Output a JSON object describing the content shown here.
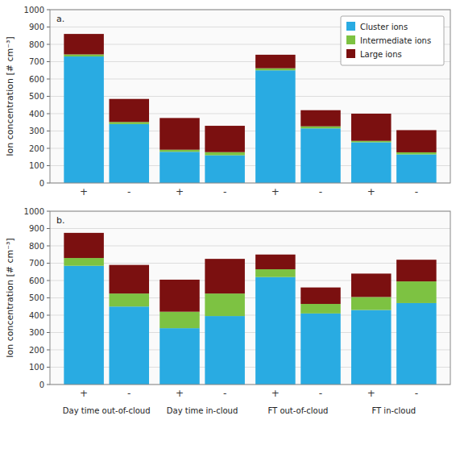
{
  "chart_data": [
    {
      "type": "bar",
      "stacked": true,
      "title": "a.",
      "ylabel": "Ion concentration [# cm⁻³]",
      "categories": [
        "+",
        "-",
        "+",
        "-",
        "+",
        "-",
        "+",
        "-"
      ],
      "series": [
        {
          "name": "Cluster ions",
          "color": "#29ABE2",
          "values": [
            730,
            340,
            180,
            160,
            650,
            315,
            235,
            165
          ]
        },
        {
          "name": "Intermediate ions",
          "color": "#7DC242",
          "values": [
            12,
            12,
            12,
            18,
            12,
            12,
            8,
            12
          ]
        },
        {
          "name": "Large ions",
          "color": "#7B1010",
          "values": [
            118,
            133,
            183,
            152,
            78,
            93,
            157,
            128
          ]
        }
      ],
      "ylim": [
        0,
        1000
      ],
      "yticks": [
        0,
        100,
        200,
        300,
        400,
        500,
        600,
        700,
        800,
        900,
        1000
      ],
      "grid": true,
      "legend": "upper right"
    },
    {
      "type": "bar",
      "stacked": true,
      "title": "b.",
      "ylabel": "Ion concentration [# cm⁻³]",
      "categories": [
        "+",
        "-",
        "+",
        "-",
        "+",
        "-",
        "+",
        "-"
      ],
      "annotations": [
        "Day time out-of-cloud",
        "Day time in-cloud",
        "FT out-of-cloud",
        "FT in-cloud"
      ],
      "series": [
        {
          "color": "#29ABE2",
          "values": [
            685,
            450,
            325,
            395,
            620,
            410,
            430,
            470
          ]
        },
        {
          "color": "#7DC242",
          "values": [
            45,
            75,
            95,
            130,
            45,
            55,
            75,
            125
          ]
        },
        {
          "color": "#7B1010",
          "values": [
            145,
            165,
            185,
            200,
            85,
            95,
            135,
            125
          ]
        }
      ],
      "ylim": [
        0,
        1000
      ],
      "yticks": [
        0,
        100,
        200,
        300,
        400,
        500,
        600,
        700,
        800,
        900,
        1000
      ],
      "grid": true
    }
  ]
}
